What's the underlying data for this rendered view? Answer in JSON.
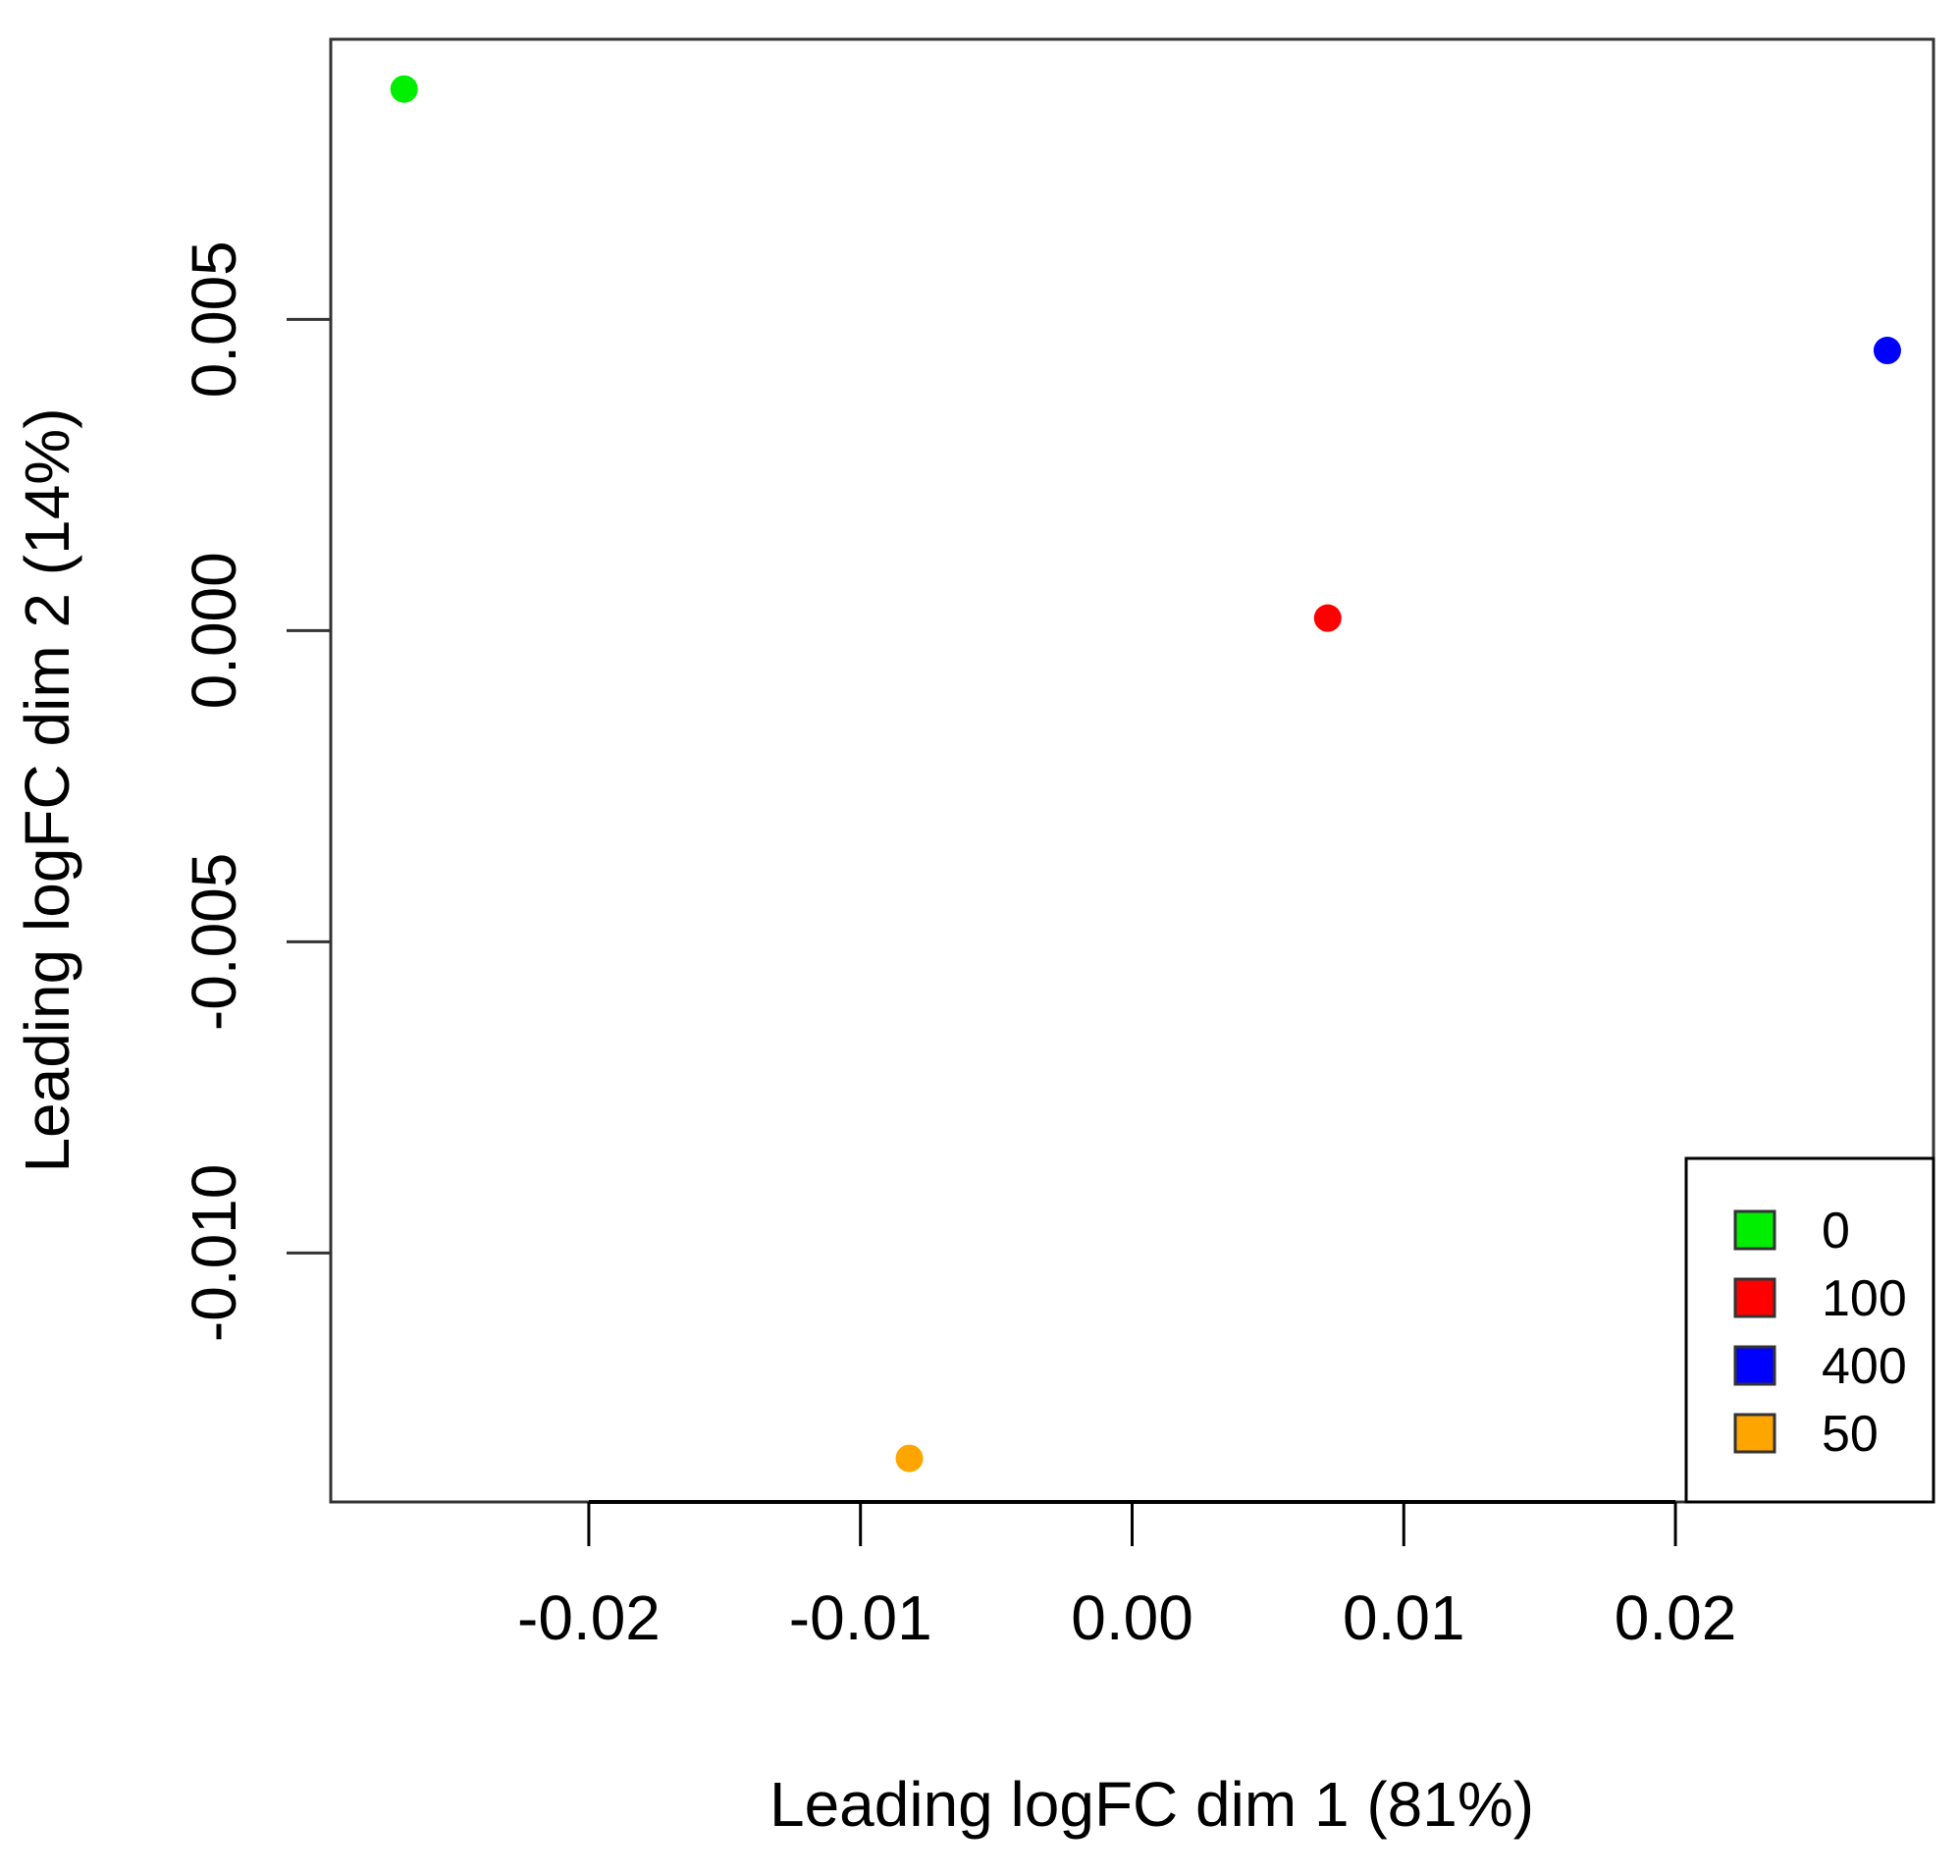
{
  "chart_data": {
    "type": "scatter",
    "title": "",
    "xlabel": "Leading logFC dim 1 (81%)",
    "ylabel": "Leading logFC dim 2 (14%)",
    "xlim": [
      -0.0295,
      0.0295
    ],
    "ylim": [
      -0.014,
      0.0095
    ],
    "xticks": [
      -0.02,
      -0.01,
      0.0,
      0.01,
      0.02
    ],
    "xtick_labels": [
      "-0.02",
      "-0.01",
      "0.00",
      "0.01",
      "0.02"
    ],
    "yticks": [
      -0.01,
      -0.005,
      0.0,
      0.005
    ],
    "ytick_labels": [
      "-0.010",
      "-0.005",
      "0.000",
      "0.005"
    ],
    "grid": false,
    "legend_position": "bottom-right",
    "series": [
      {
        "name": "0",
        "color": "#00ee00",
        "points": [
          {
            "x": -0.0268,
            "y": 0.0087
          }
        ]
      },
      {
        "name": "100",
        "color": "#ff0000",
        "points": [
          {
            "x": 0.0072,
            "y": 0.0002
          }
        ]
      },
      {
        "name": "400",
        "color": "#0000ff",
        "points": [
          {
            "x": 0.0278,
            "y": 0.0045
          }
        ]
      },
      {
        "name": "50",
        "color": "#ffa500",
        "points": [
          {
            "x": -0.0082,
            "y": -0.0133
          }
        ]
      }
    ]
  }
}
